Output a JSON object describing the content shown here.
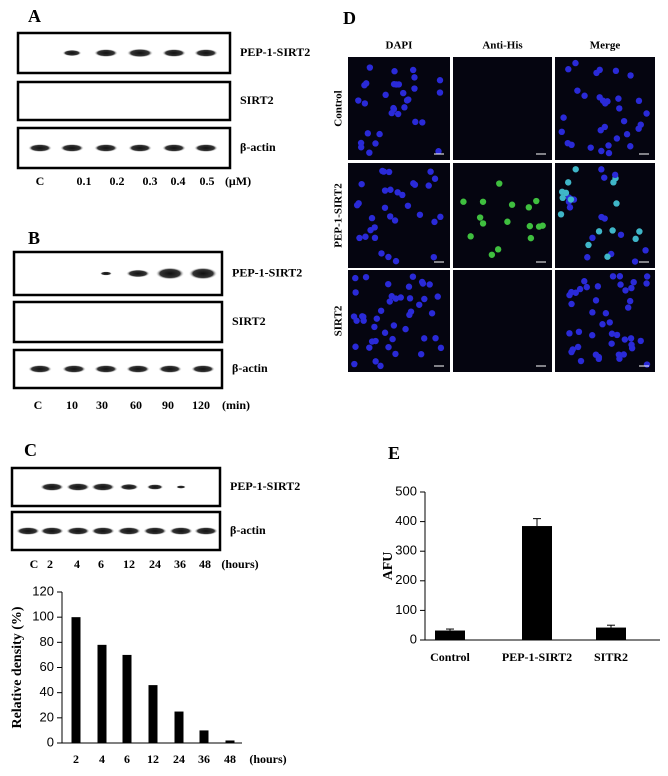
{
  "panels": {
    "A": {
      "label": "A",
      "blot_labels": [
        "PEP-1-SIRT2",
        "SIRT2",
        "β-actin"
      ],
      "lanes": [
        "C",
        "0.1",
        "0.2",
        "0.3",
        "0.4",
        "0.5"
      ],
      "unit": "(μM)"
    },
    "B": {
      "label": "B",
      "blot_labels": [
        "PEP-1-SIRT2",
        "SIRT2",
        "β-actin"
      ],
      "lanes": [
        "C",
        "10",
        "30",
        "60",
        "90",
        "120"
      ],
      "unit": "(min)"
    },
    "C": {
      "label": "C",
      "blot_labels": [
        "PEP-1-SIRT2",
        "β-actin"
      ],
      "lanes": [
        "C",
        "2",
        "4",
        "6",
        "12",
        "24",
        "36",
        "48"
      ],
      "unit": "(hours)"
    },
    "D": {
      "label": "D",
      "columns": [
        "DAPI",
        "Anti-His",
        "Merge"
      ],
      "rows": [
        "Control",
        "PEP-1-SIRT2",
        "SIRT2"
      ]
    },
    "E": {
      "label": "E"
    }
  },
  "chart_data": [
    {
      "type": "bar",
      "ylabel": "Relative density (%)",
      "xlabel": "(hours)",
      "categories": [
        "2",
        "4",
        "6",
        "12",
        "24",
        "36",
        "48"
      ],
      "values": [
        100,
        78,
        70,
        46,
        25,
        10,
        2
      ],
      "color": "#000000",
      "ylim": [
        0,
        120
      ],
      "yticks": [
        0,
        20,
        40,
        60,
        80,
        100,
        120
      ]
    },
    {
      "type": "bar",
      "ylabel": "AFU",
      "categories": [
        "Control",
        "PEP-1-SIRT2",
        "SITR2"
      ],
      "values": [
        32,
        385,
        42
      ],
      "errors": [
        5,
        25,
        8
      ],
      "color": "#000000",
      "ylim": [
        0,
        500
      ],
      "yticks": [
        0,
        100,
        200,
        300,
        400,
        500
      ]
    }
  ]
}
